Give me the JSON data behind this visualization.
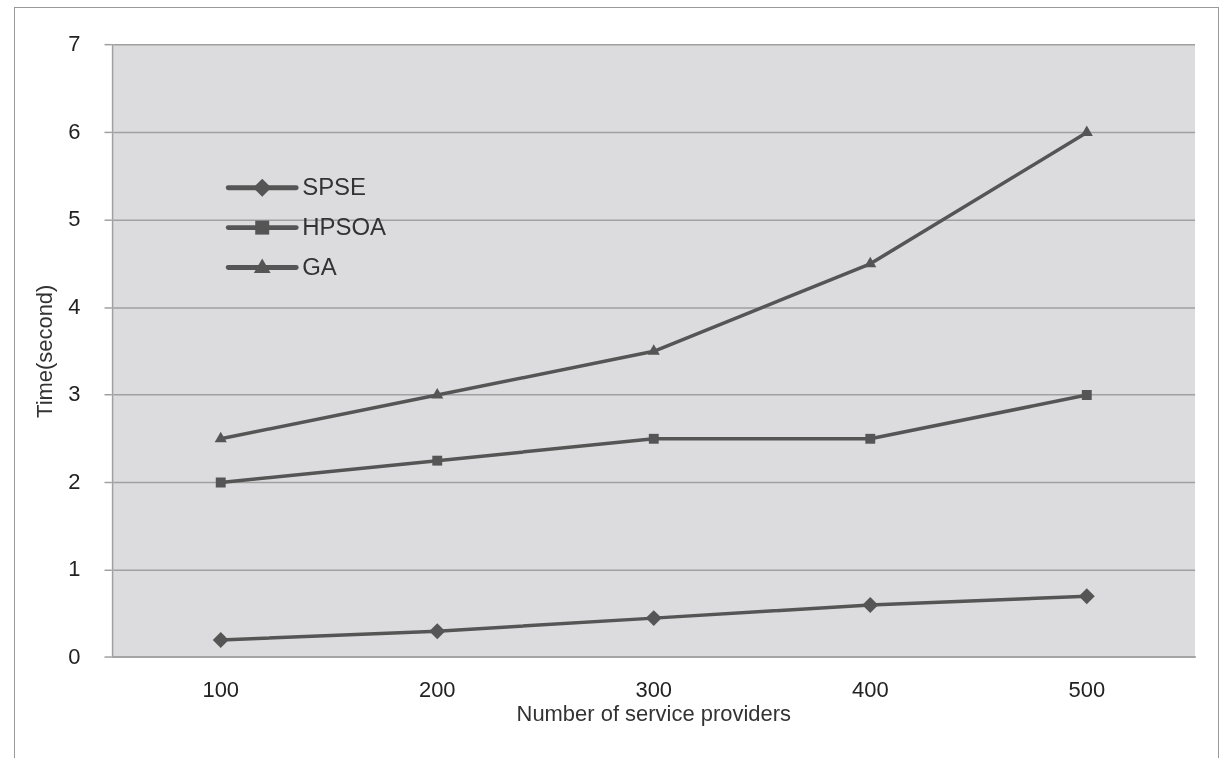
{
  "chart_data": {
    "type": "line",
    "xlabel": "Number of service providers",
    "ylabel": "Time(second)",
    "categories": [
      "100",
      "200",
      "300",
      "400",
      "500"
    ],
    "series": [
      {
        "name": "SPSE",
        "color": "#555555",
        "marker": "diamond",
        "values": [
          0.2,
          0.3,
          0.45,
          0.6,
          0.7
        ]
      },
      {
        "name": "HPSOA",
        "color": "#555555",
        "marker": "square",
        "values": [
          2,
          2.25,
          2.5,
          2.5,
          3
        ]
      },
      {
        "name": "GA",
        "color": "#555555",
        "marker": "triangle",
        "values": [
          2.5,
          3,
          3.5,
          4.5,
          6
        ]
      }
    ],
    "ylim": [
      0,
      7
    ],
    "yticks": [
      0,
      1,
      2,
      3,
      4,
      5,
      6,
      7
    ],
    "grid": "y",
    "legend": "top left"
  }
}
